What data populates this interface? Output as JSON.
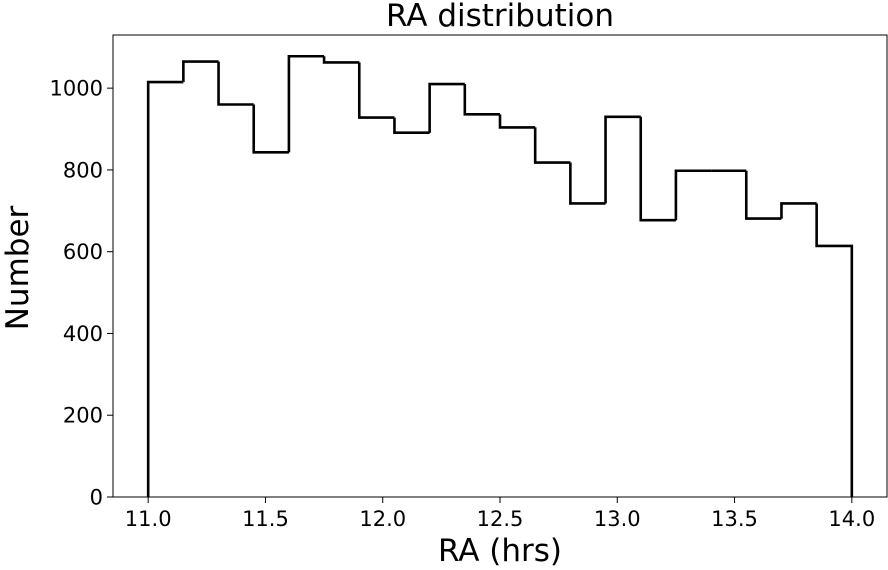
{
  "chart_data": {
    "type": "histogram",
    "title": "RA distribution",
    "xlabel": "RA (hrs)",
    "ylabel": "Number",
    "xlim": [
      10.85,
      14.15
    ],
    "ylim": [
      0,
      1130
    ],
    "xticks": [
      11.0,
      11.5,
      12.0,
      12.5,
      13.0,
      13.5,
      14.0
    ],
    "xtick_labels": [
      "11.0",
      "11.5",
      "12.0",
      "12.5",
      "13.0",
      "13.5",
      "14.0"
    ],
    "yticks": [
      0,
      200,
      400,
      600,
      800,
      1000
    ],
    "ytick_labels": [
      "0",
      "200",
      "400",
      "600",
      "800",
      "1000"
    ],
    "bin_edges": [
      11.0,
      11.15,
      11.3,
      11.45,
      11.6,
      11.75,
      11.9,
      12.05,
      12.2,
      12.35,
      12.5,
      12.65,
      12.8,
      12.95,
      13.1,
      13.25,
      13.4,
      13.55,
      13.7,
      13.85,
      14.0
    ],
    "counts": [
      1015,
      1065,
      960,
      843,
      1078,
      1063,
      928,
      891,
      1010,
      936,
      904,
      818,
      718,
      930,
      677,
      798,
      798,
      681,
      718,
      614
    ],
    "histtype": "step",
    "line_color": "#000000",
    "grid": false,
    "legend": "none"
  }
}
